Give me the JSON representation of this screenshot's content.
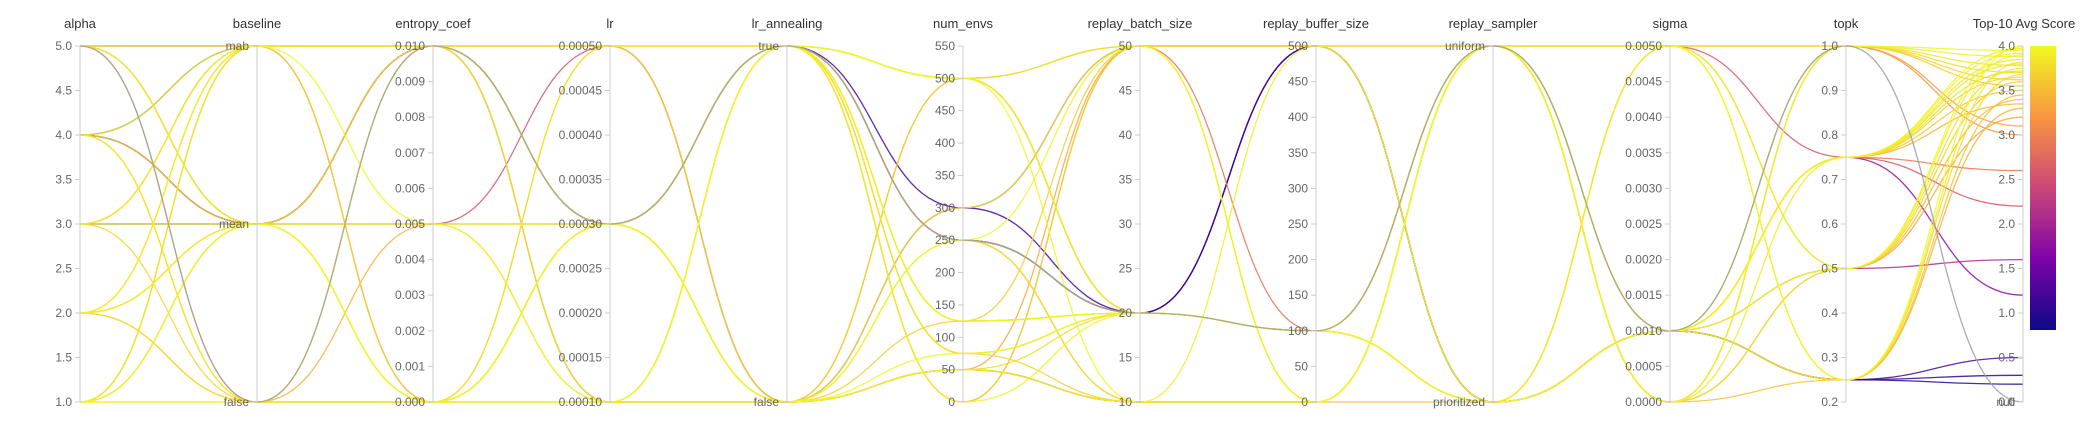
{
  "chart_data": {
    "type": "parallel-coordinates",
    "axes": [
      {
        "name": "alpha",
        "kind": "numeric",
        "range": [
          1.0,
          5.0
        ],
        "ticks": [
          "1.0",
          "1.5",
          "2.0",
          "2.5",
          "3.0",
          "3.5",
          "4.0",
          "4.5",
          "5.0"
        ]
      },
      {
        "name": "baseline",
        "kind": "categorical",
        "categories": [
          "false",
          "mean",
          "mab"
        ]
      },
      {
        "name": "entropy_coef",
        "kind": "numeric",
        "range": [
          0.0,
          0.01
        ],
        "ticks": [
          "0.000",
          "0.001",
          "0.002",
          "0.003",
          "0.004",
          "0.005",
          "0.006",
          "0.007",
          "0.008",
          "0.009",
          "0.010"
        ]
      },
      {
        "name": "lr",
        "kind": "numeric",
        "range": [
          0.0001,
          0.0005
        ],
        "ticks": [
          "0.00010",
          "0.00015",
          "0.00020",
          "0.00025",
          "0.00030",
          "0.00035",
          "0.00040",
          "0.00045",
          "0.00050"
        ]
      },
      {
        "name": "lr_annealing",
        "kind": "categorical",
        "categories": [
          "false",
          "true"
        ]
      },
      {
        "name": "num_envs",
        "kind": "numeric",
        "range": [
          0,
          550
        ],
        "ticks": [
          "0",
          "50",
          "100",
          "150",
          "200",
          "250",
          "300",
          "350",
          "400",
          "450",
          "500",
          "550"
        ]
      },
      {
        "name": "replay_batch_size",
        "kind": "numeric",
        "range": [
          10,
          50
        ],
        "ticks": [
          "10",
          "15",
          "20",
          "25",
          "30",
          "35",
          "40",
          "45",
          "50"
        ]
      },
      {
        "name": "replay_buffer_size",
        "kind": "numeric",
        "range": [
          0,
          500
        ],
        "ticks": [
          "0",
          "50",
          "100",
          "150",
          "200",
          "250",
          "300",
          "350",
          "400",
          "450",
          "500"
        ]
      },
      {
        "name": "replay_sampler",
        "kind": "categorical",
        "categories": [
          "prioritized",
          "uniform"
        ]
      },
      {
        "name": "sigma",
        "kind": "numeric",
        "range": [
          0.0,
          0.005
        ],
        "ticks": [
          "0.0000",
          "0.0005",
          "0.0010",
          "0.0015",
          "0.0020",
          "0.0025",
          "0.0030",
          "0.0035",
          "0.0040",
          "0.0045",
          "0.0050"
        ]
      },
      {
        "name": "topk",
        "kind": "numeric",
        "range": [
          0.2,
          1.0
        ],
        "ticks": [
          "0.2",
          "0.3",
          "0.4",
          "0.5",
          "0.6",
          "0.7",
          "0.8",
          "0.9",
          "1.0"
        ]
      },
      {
        "name": "Top-10 Avg Score",
        "kind": "numeric-with-null",
        "range": [
          0.0,
          4.0
        ],
        "ticks": [
          "0.0",
          "0.5",
          "1.0",
          "1.5",
          "2.0",
          "2.5",
          "3.0",
          "3.5",
          "4.0"
        ],
        "null_label": "null"
      }
    ],
    "color_metric": "Top-10 Avg Score",
    "colorscale": [
      "#0d0887",
      "#7e03a8",
      "#cc4778",
      "#f89540",
      "#f0f921"
    ],
    "colorbar_ticks": [
      "0.0",
      "0.5",
      "1.0",
      "1.5",
      "2.0",
      "2.5",
      "3.0",
      "3.5",
      "4.0"
    ],
    "series": [
      {
        "values": [
          3.0,
          "mean",
          0.01,
          0.0003,
          "true",
          250,
          20,
          500,
          "prioritized",
          0.001,
          0.25,
          0.2
        ]
      },
      {
        "values": [
          4.0,
          "mean",
          0.01,
          0.0003,
          "true",
          250,
          20,
          500,
          "prioritized",
          0.001,
          0.25,
          0.3
        ]
      },
      {
        "values": [
          4.0,
          "mab",
          0.01,
          0.0003,
          "true",
          300,
          20,
          500,
          "prioritized",
          0.001,
          0.25,
          0.5
        ]
      },
      {
        "values": [
          5.0,
          "mab",
          0.01,
          0.0005,
          "false",
          50,
          10,
          0,
          "uniform",
          0.001,
          0.5,
          1.6
        ]
      },
      {
        "values": [
          4.0,
          "mean",
          0.01,
          0.0001,
          "false",
          300,
          50,
          500,
          "prioritized",
          0.001,
          0.75,
          1.2
        ]
      },
      {
        "values": [
          5.0,
          "mean",
          0.005,
          0.0005,
          "false",
          50,
          10,
          0,
          "uniform",
          0.005,
          0.75,
          2.2
        ]
      },
      {
        "values": [
          3.0,
          "mab",
          0.0,
          0.0003,
          "true",
          0,
          50,
          100,
          "prioritized",
          0.001,
          0.75,
          2.6
        ]
      },
      {
        "values": [
          2.0,
          "mean",
          0.01,
          0.0003,
          "false",
          500,
          20,
          100,
          "uniform",
          0.0,
          1.0,
          3.0
        ]
      },
      {
        "values": [
          1.0,
          "mab",
          0.01,
          0.0005,
          "true",
          250,
          10,
          0,
          "uniform",
          0.005,
          1.0,
          3.1
        ]
      },
      {
        "values": [
          2.0,
          "false",
          0.0,
          0.0001,
          "false",
          50,
          50,
          500,
          "uniform",
          0.0,
          0.5,
          3.2
        ]
      },
      {
        "values": [
          5.0,
          "false",
          0.005,
          0.0003,
          "true",
          500,
          20,
          100,
          "prioritized",
          0.001,
          0.25,
          3.3
        ]
      },
      {
        "values": [
          1.0,
          "mean",
          0.0,
          0.0001,
          "true",
          125,
          20,
          100,
          "uniform",
          0.001,
          0.75,
          3.35
        ]
      },
      {
        "values": [
          3.0,
          "mab",
          0.01,
          0.0003,
          "false",
          50,
          10,
          0,
          "prioritized",
          0.005,
          0.5,
          3.4
        ]
      },
      {
        "values": [
          4.0,
          "false",
          0.0,
          0.0005,
          "true",
          500,
          50,
          500,
          "uniform",
          0.0,
          0.25,
          3.45
        ]
      },
      {
        "values": [
          1.0,
          "mean",
          0.005,
          0.0003,
          "true",
          75,
          20,
          100,
          "uniform",
          0.001,
          0.75,
          3.5
        ]
      },
      {
        "values": [
          2.0,
          "mab",
          0.01,
          0.0001,
          "false",
          125,
          50,
          500,
          "prioritized",
          0.005,
          1.0,
          3.55
        ]
      },
      {
        "values": [
          5.0,
          "mean",
          0.0,
          0.0003,
          "true",
          250,
          20,
          100,
          "uniform",
          0.001,
          0.5,
          3.6
        ]
      },
      {
        "values": [
          3.0,
          "false",
          0.01,
          0.0005,
          "true",
          75,
          10,
          0,
          "uniform",
          0.0,
          1.0,
          3.62
        ]
      },
      {
        "values": [
          1.0,
          "mab",
          0.0,
          0.0003,
          "false",
          500,
          20,
          100,
          "prioritized",
          0.001,
          0.75,
          3.65
        ]
      },
      {
        "values": [
          2.0,
          "mean",
          0.005,
          0.0001,
          "true",
          0,
          50,
          0,
          "uniform",
          0.005,
          0.25,
          3.68
        ]
      },
      {
        "values": [
          4.0,
          "mean",
          0.01,
          0.0003,
          "true",
          125,
          20,
          100,
          "uniform",
          0.001,
          1.0,
          3.7
        ]
      },
      {
        "values": [
          1.0,
          "false",
          0.0,
          0.0003,
          "false",
          50,
          20,
          100,
          "prioritized",
          0.001,
          0.75,
          3.72
        ]
      },
      {
        "values": [
          5.0,
          "mab",
          0.01,
          0.0001,
          "true",
          500,
          50,
          500,
          "uniform",
          0.0,
          0.5,
          3.75
        ]
      },
      {
        "values": [
          2.0,
          "false",
          0.0,
          0.0005,
          "false",
          250,
          10,
          0,
          "uniform",
          0.005,
          1.0,
          3.78
        ]
      },
      {
        "values": [
          3.0,
          "mean",
          0.005,
          0.0003,
          "true",
          75,
          20,
          100,
          "uniform",
          0.001,
          0.75,
          3.8
        ]
      },
      {
        "values": [
          1.0,
          "mab",
          0.01,
          0.0003,
          "true",
          125,
          20,
          100,
          "prioritized",
          0.001,
          0.25,
          3.82
        ]
      },
      {
        "values": [
          4.0,
          "false",
          0.0,
          0.0001,
          "false",
          300,
          50,
          0,
          "uniform",
          0.0,
          0.75,
          3.85
        ]
      },
      {
        "values": [
          2.0,
          "mab",
          0.01,
          0.0003,
          "true",
          500,
          20,
          100,
          "uniform",
          0.001,
          1.0,
          3.88
        ]
      },
      {
        "values": [
          5.0,
          "mean",
          0.0,
          0.0003,
          "false",
          50,
          10,
          500,
          "prioritized",
          0.005,
          0.5,
          3.9
        ]
      },
      {
        "values": [
          1.0,
          "false",
          0.01,
          0.0005,
          "true",
          0,
          20,
          100,
          "uniform",
          0.001,
          0.75,
          3.92
        ]
      },
      {
        "values": [
          3.0,
          "mab",
          0.005,
          0.0001,
          "false",
          250,
          50,
          0,
          "uniform",
          0.0,
          1.0,
          3.95
        ]
      },
      {
        "values": [
          2.0,
          "mean",
          0.0,
          0.0003,
          "true",
          125,
          20,
          100,
          "uniform",
          0.001,
          0.75,
          3.97
        ]
      },
      {
        "values": [
          4.0,
          "mab",
          0.01,
          0.0003,
          "false",
          75,
          20,
          100,
          "prioritized",
          0.001,
          0.5,
          3.98
        ]
      },
      {
        "values": [
          1.0,
          "mean",
          0.0,
          0.0001,
          "true",
          500,
          10,
          0,
          "uniform",
          0.005,
          0.25,
          4.0
        ]
      },
      {
        "values": [
          5.0,
          "false",
          0.01,
          0.0003,
          "true",
          250,
          20,
          100,
          "uniform",
          0.001,
          1.0,
          null
        ]
      }
    ]
  }
}
